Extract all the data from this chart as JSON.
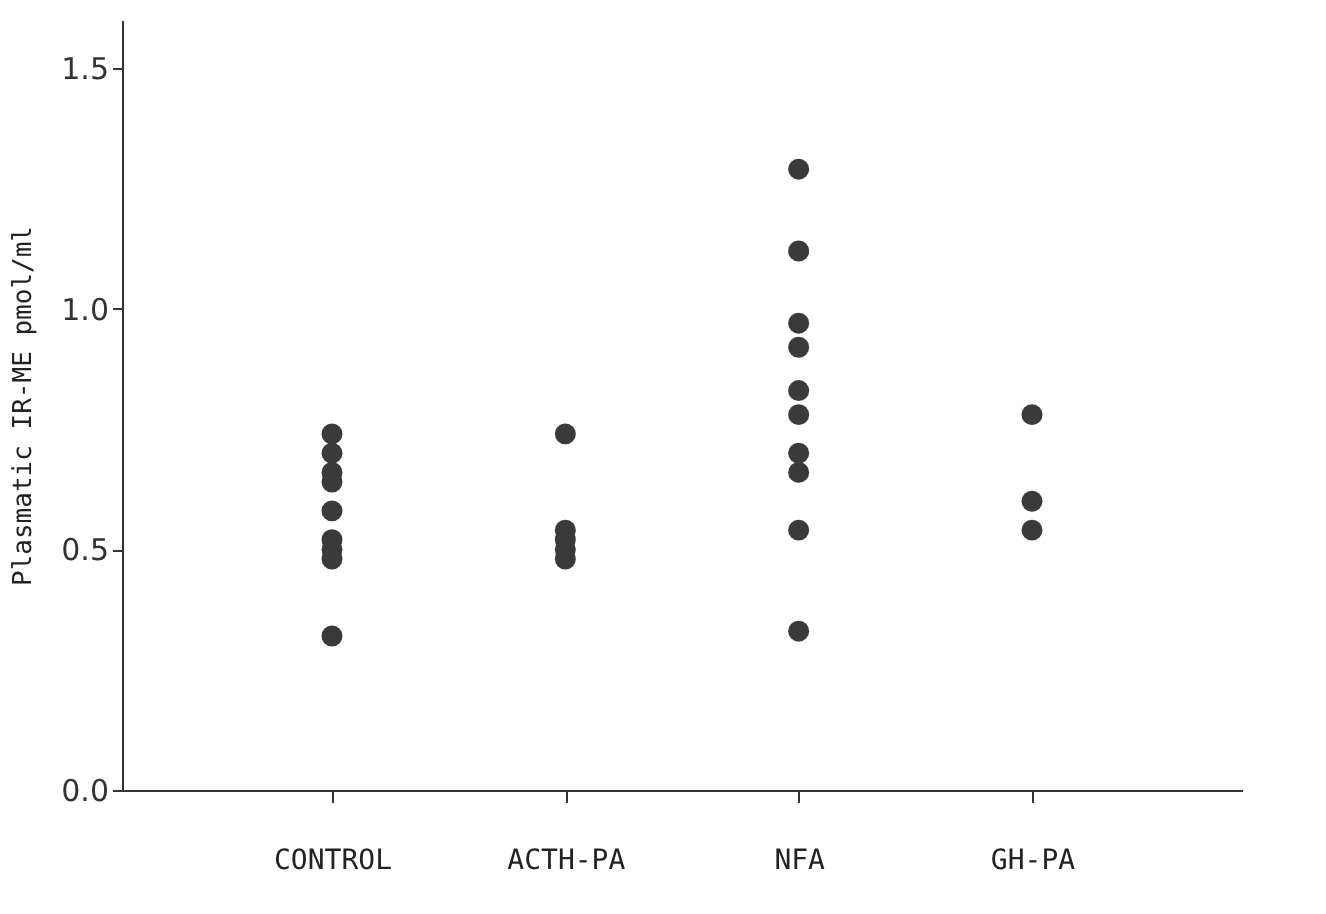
{
  "chart_data": {
    "type": "scatter",
    "ylabel": "Plasmatic IR-ME pmol/ml",
    "categories": [
      "CONTROL",
      "ACTH-PA",
      "NFA",
      "GH-PA"
    ],
    "series": [
      {
        "color": "#3a3a3a",
        "x": [
          "CONTROL",
          "CONTROL",
          "CONTROL",
          "CONTROL",
          "CONTROL",
          "CONTROL",
          "CONTROL",
          "CONTROL",
          "CONTROL",
          "ACTH-PA",
          "ACTH-PA",
          "ACTH-PA",
          "ACTH-PA",
          "ACTH-PA",
          "NFA",
          "NFA",
          "NFA",
          "NFA",
          "NFA",
          "NFA",
          "NFA",
          "NFA",
          "NFA",
          "NFA",
          "GH-PA",
          "GH-PA",
          "GH-PA"
        ],
        "values": [
          0.74,
          0.7,
          0.66,
          0.64,
          0.58,
          0.52,
          0.5,
          0.48,
          0.32,
          0.74,
          0.54,
          0.52,
          0.5,
          0.48,
          1.29,
          1.12,
          0.97,
          0.92,
          0.83,
          0.78,
          0.7,
          0.66,
          0.54,
          0.33,
          0.78,
          0.6,
          0.54
        ]
      }
    ],
    "ylim": [
      0,
      1.6
    ],
    "yticks": [
      {
        "value": 0,
        "label": "0.0"
      },
      0.5,
      {
        "value": 1,
        "label": "1.0"
      },
      1.5
    ],
    "grid": false,
    "marker": "circle"
  }
}
